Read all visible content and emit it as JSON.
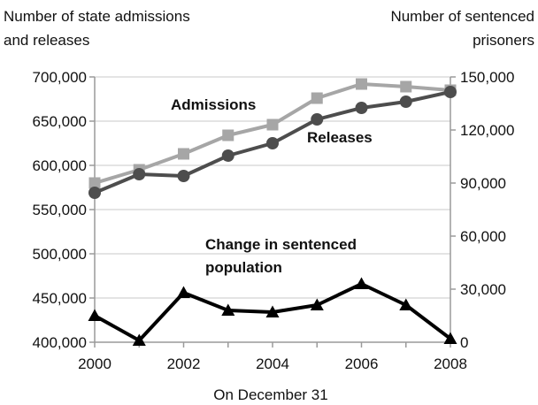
{
  "chart_data": {
    "type": "line",
    "x": [
      2000,
      2001,
      2002,
      2003,
      2004,
      2005,
      2006,
      2007,
      2008
    ],
    "xlabel": "On December 31",
    "x_ticks": [
      "2000",
      "2002",
      "2004",
      "2006",
      "2008"
    ],
    "left_axis": {
      "label_lines": [
        "Number of state admissions",
        "and releases"
      ],
      "ylim": [
        400000,
        700000
      ],
      "ticks": [
        "400,000",
        "450,000",
        "500,000",
        "550,000",
        "600,000",
        "650,000",
        "700,000"
      ]
    },
    "right_axis": {
      "label_lines": [
        "Number of sentenced",
        "prisoners"
      ],
      "ylim": [
        0,
        150000
      ],
      "ticks": [
        "0",
        "30,000",
        "60,000",
        "90,000",
        "120,000",
        "150,000"
      ]
    },
    "grid": true,
    "series": [
      {
        "name": "Admissions",
        "axis": "left",
        "marker": "square",
        "color": "#a6a6a6",
        "values": [
          580000,
          595000,
          613000,
          634000,
          646000,
          676000,
          692000,
          689000,
          685000
        ]
      },
      {
        "name": "Releases",
        "axis": "left",
        "marker": "circle",
        "color": "#4d4d4d",
        "values": [
          569000,
          590000,
          588000,
          611000,
          625000,
          652000,
          665000,
          672000,
          683000
        ]
      },
      {
        "name": "Change in sentenced population",
        "label_lines": [
          "Change in sentenced",
          "population"
        ],
        "axis": "right",
        "marker": "triangle",
        "color": "#000000",
        "values": [
          15000,
          1000,
          28000,
          18000,
          17000,
          21000,
          33000,
          21000,
          2000
        ]
      }
    ]
  }
}
